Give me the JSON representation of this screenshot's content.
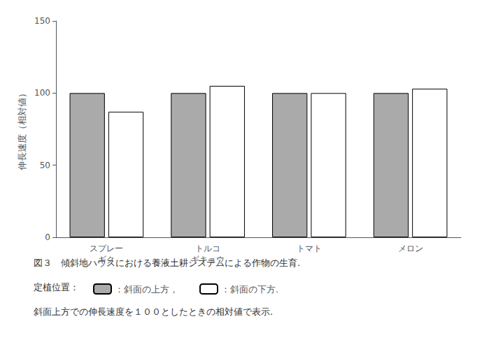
{
  "chart_data": {
    "type": "bar",
    "categories": [
      "スプレー\nギク",
      "トルコ\nギキョウ",
      "トマト",
      "メロン"
    ],
    "series": [
      {
        "name": "：斜面の上方，",
        "color": "#aaaaaa",
        "values": [
          100,
          100,
          100,
          100
        ]
      },
      {
        "name": "：斜面の下方.",
        "color": "#ffffff",
        "values": [
          87,
          105,
          100,
          103
        ]
      }
    ],
    "ylabel": "伸長速度（相対値）",
    "ylim": [
      0,
      150
    ],
    "yticks": [
      0,
      50,
      100,
      150
    ],
    "grid": false,
    "legend": "bottom",
    "annotations": [
      "図３　傾斜地ハウスにおける養液土耕システムによる作物の生育.",
      "定植位置：",
      "斜面上方での伸長速度を１００としたときの相対値で表示."
    ]
  }
}
